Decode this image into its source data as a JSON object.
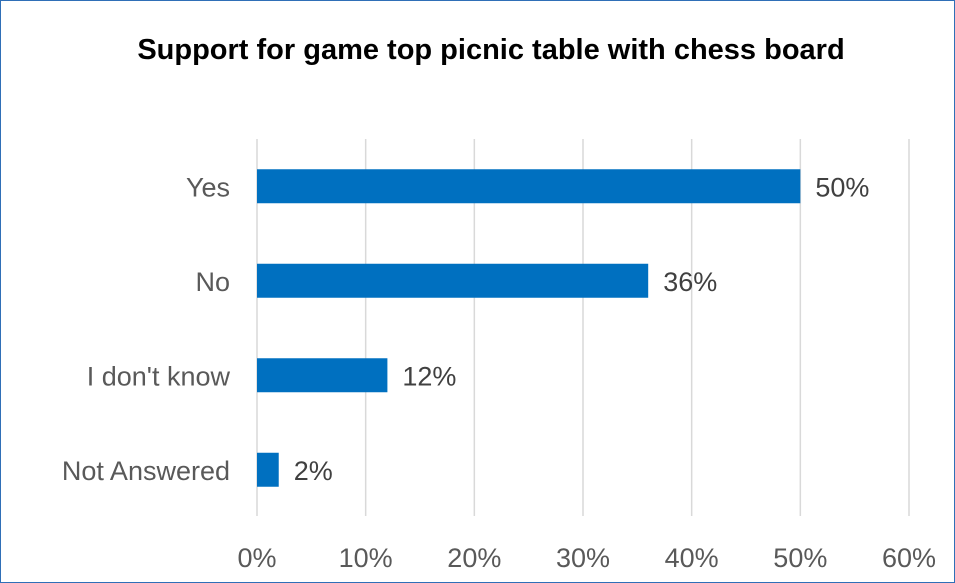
{
  "chart_data": {
    "type": "bar",
    "orientation": "horizontal",
    "title": "Support for game top picnic table with chess board",
    "xlabel": "",
    "ylabel": "",
    "categories": [
      "Yes",
      "No",
      "I don't know",
      "Not Answered"
    ],
    "values": [
      50,
      36,
      12,
      2
    ],
    "data_labels": [
      "50%",
      "36%",
      "12%",
      "2%"
    ],
    "xlim": [
      0,
      60
    ],
    "x_ticks": [
      0,
      10,
      20,
      30,
      40,
      50,
      60
    ],
    "x_tick_labels": [
      "0%",
      "10%",
      "20%",
      "30%",
      "40%",
      "50%",
      "60%"
    ],
    "grid": "vertical",
    "legend": "none",
    "bar_color": "#0070c0",
    "gridline_color": "#d9d9d9",
    "frame_color": "#2f6fb7"
  }
}
